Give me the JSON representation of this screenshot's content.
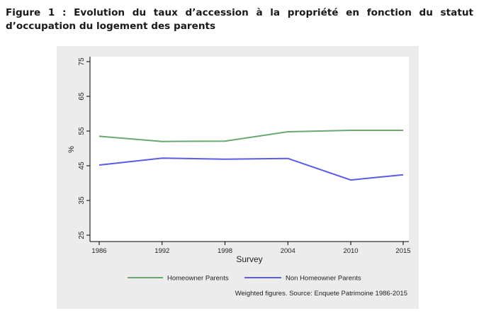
{
  "figure": {
    "title": "Figure 1 : Evolution du taux d’accession à la propriété en fonction du statut d’occupation du logement des parents"
  },
  "colors": {
    "panel_bg": "#ececec",
    "plot_bg": "#ffffff",
    "homeowner": "#6aa870",
    "non_homeowner": "#5b5bec"
  },
  "chart_data": {
    "type": "line",
    "title": "",
    "xlabel": "Survey",
    "ylabel": "%",
    "x": [
      1986,
      1992,
      1998,
      2004,
      2010,
      2015
    ],
    "xticks": [
      "1986",
      "1992",
      "1998",
      "2004",
      "2010",
      "2015"
    ],
    "yticks": [
      "25",
      "35",
      "45",
      "55",
      "65",
      "75"
    ],
    "ylim": [
      25,
      75
    ],
    "grid": false,
    "legend_position": "bottom",
    "series": [
      {
        "name": "Homeowner Parents",
        "values": [
          53.5,
          52.0,
          52.1,
          54.8,
          55.2,
          55.2
        ]
      },
      {
        "name": "Non Homeowner Parents",
        "values": [
          45.2,
          47.2,
          46.9,
          47.1,
          40.9,
          42.4
        ]
      }
    ],
    "note": "Weighted figures. Source: Enquete Patrimoine 1986-2015"
  }
}
